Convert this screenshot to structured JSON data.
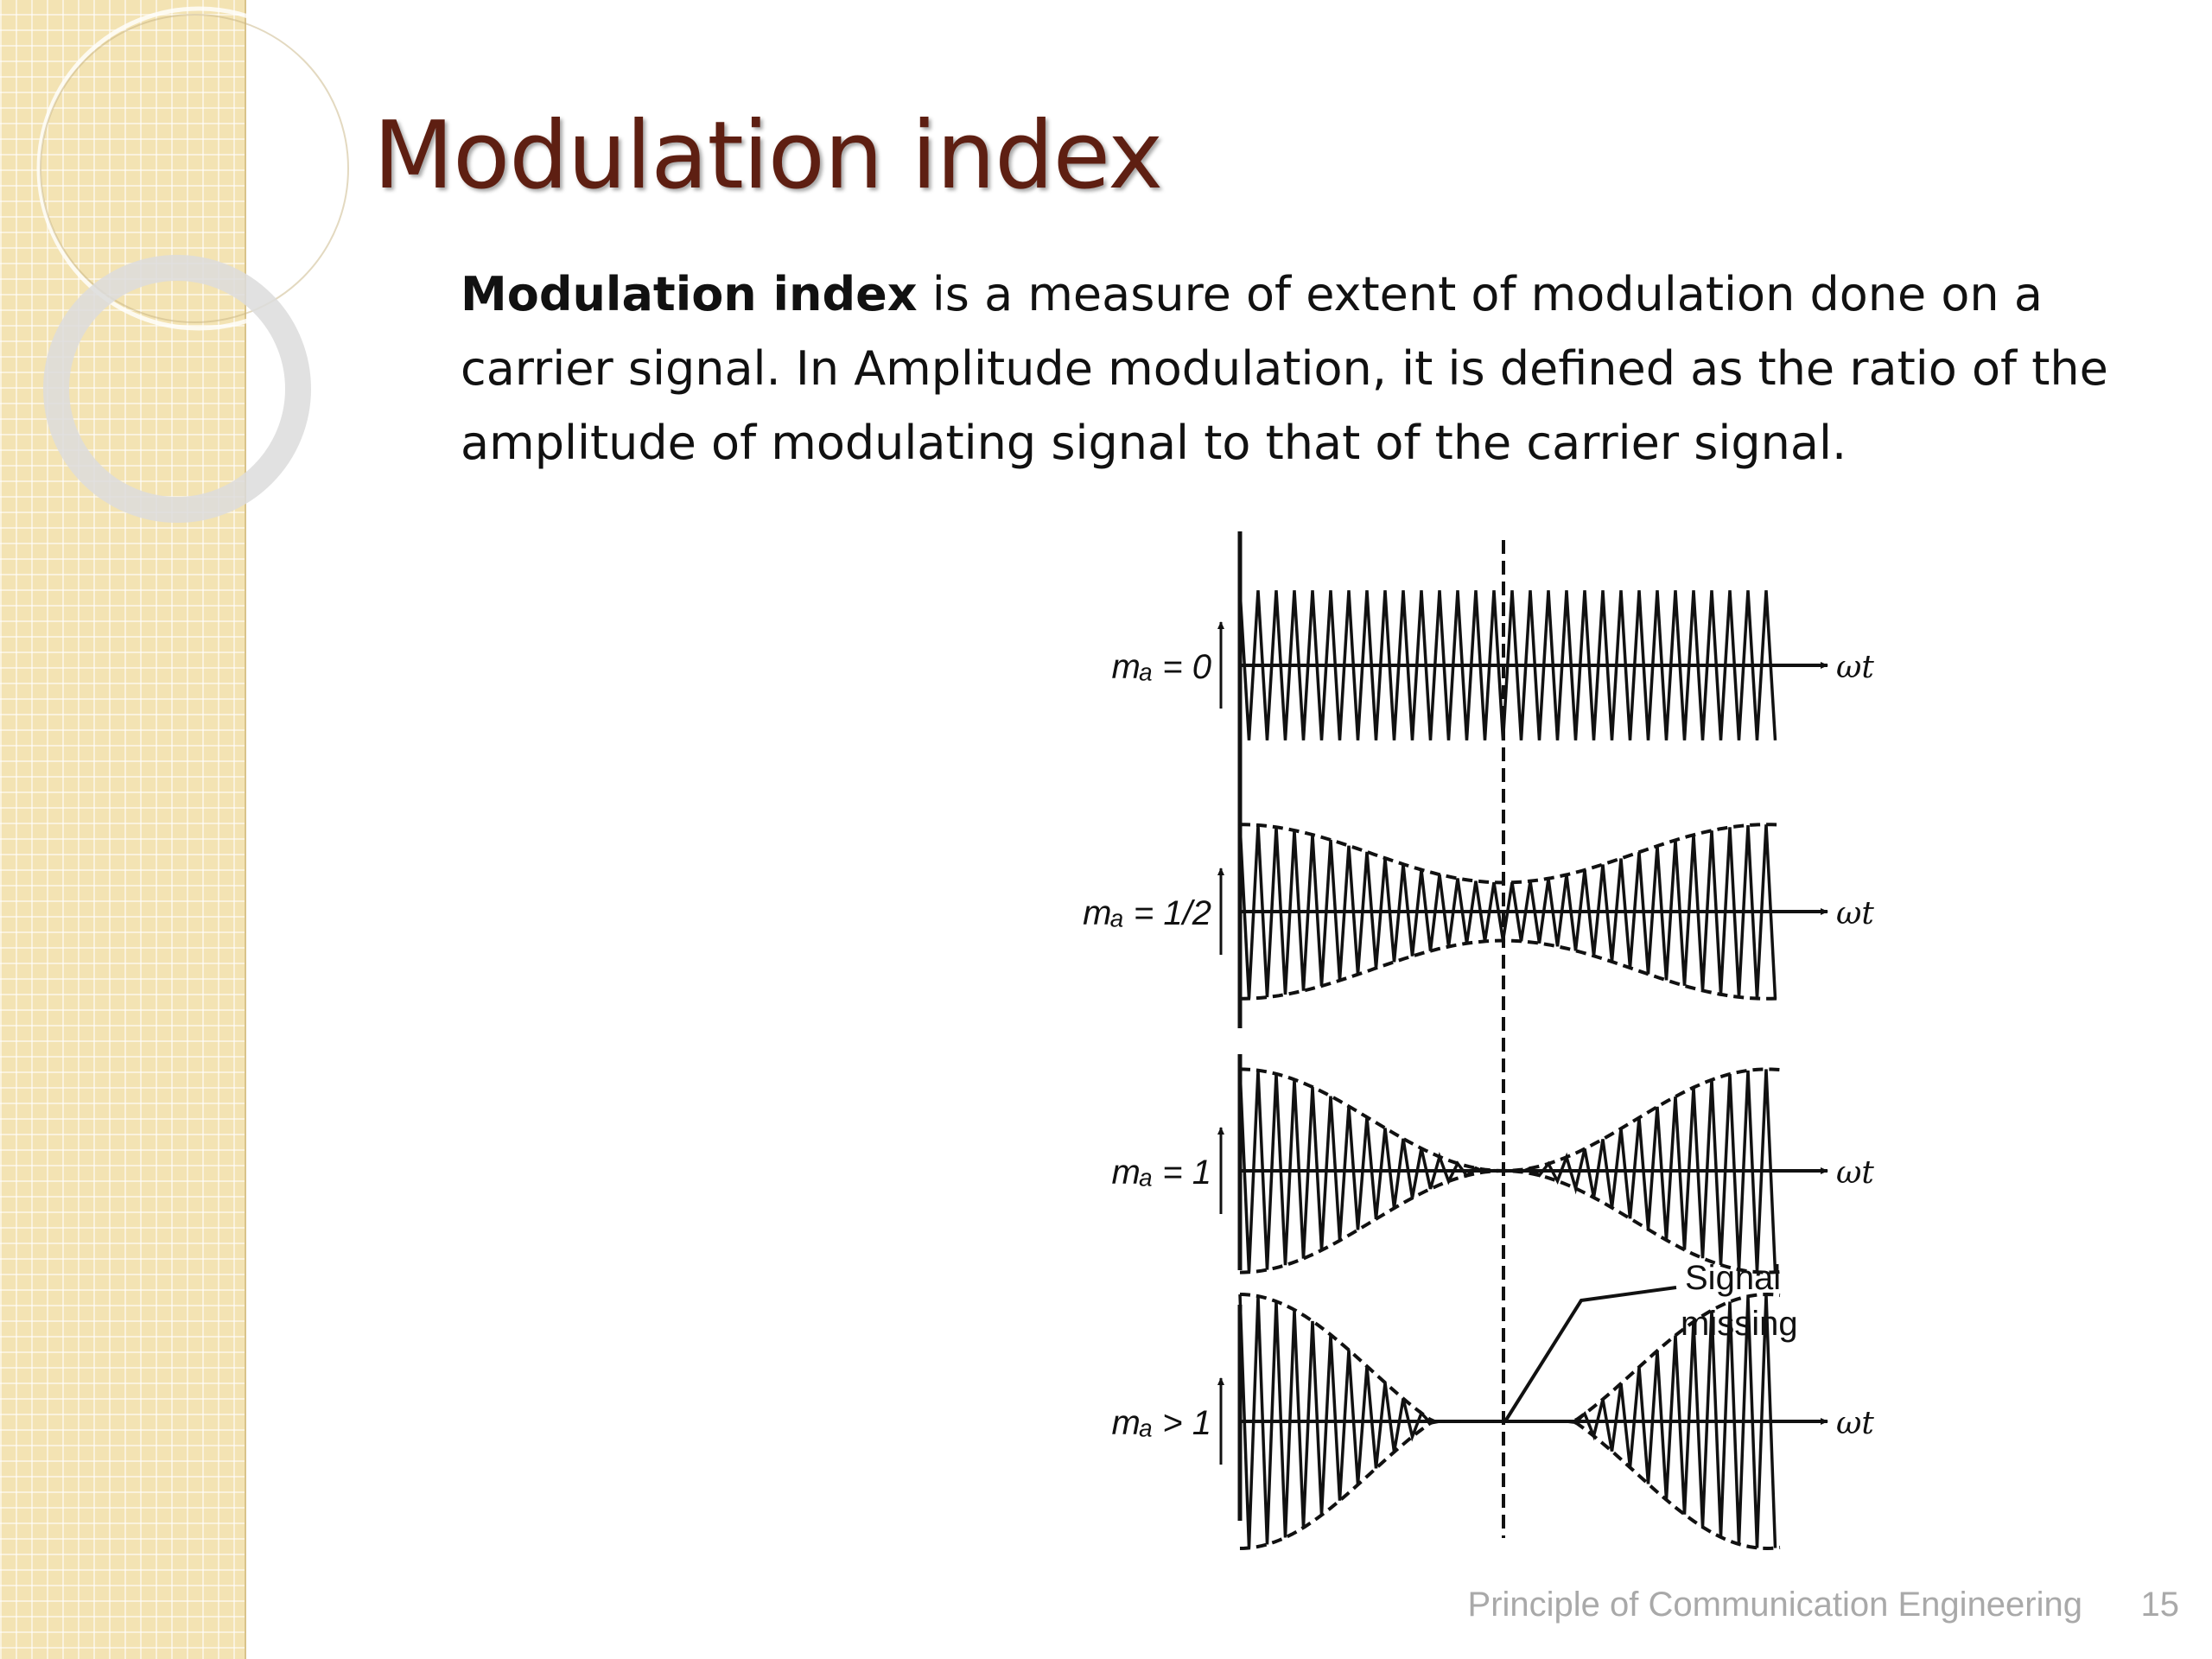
{
  "slide": {
    "title": "Modulation index",
    "body_bold": "Modulation index",
    "body_rest": " is a measure of extent of modulation done on a carrier signal. In Amplitude modulation, it is defined as the ratio of the amplitude of modulating signal to that of the carrier signal.",
    "footer": "Principle of Communication Engineering",
    "page_number": "15"
  },
  "diagram": {
    "axis_label": "ωt",
    "annotation_line1": "Signal",
    "annotation_line2": "missing",
    "panels": [
      {
        "label": "mₐ = 0",
        "m": 0
      },
      {
        "label": "mₐ = 1/2",
        "m": 0.5
      },
      {
        "label": "mₐ = 1",
        "m": 1
      },
      {
        "label": "mₐ > 1",
        "m": 1.5
      }
    ]
  },
  "colors": {
    "title": "#5e1f12",
    "side_panel": "#f3e3b3",
    "footer": "#a9a9a9",
    "ink": "#111111"
  }
}
